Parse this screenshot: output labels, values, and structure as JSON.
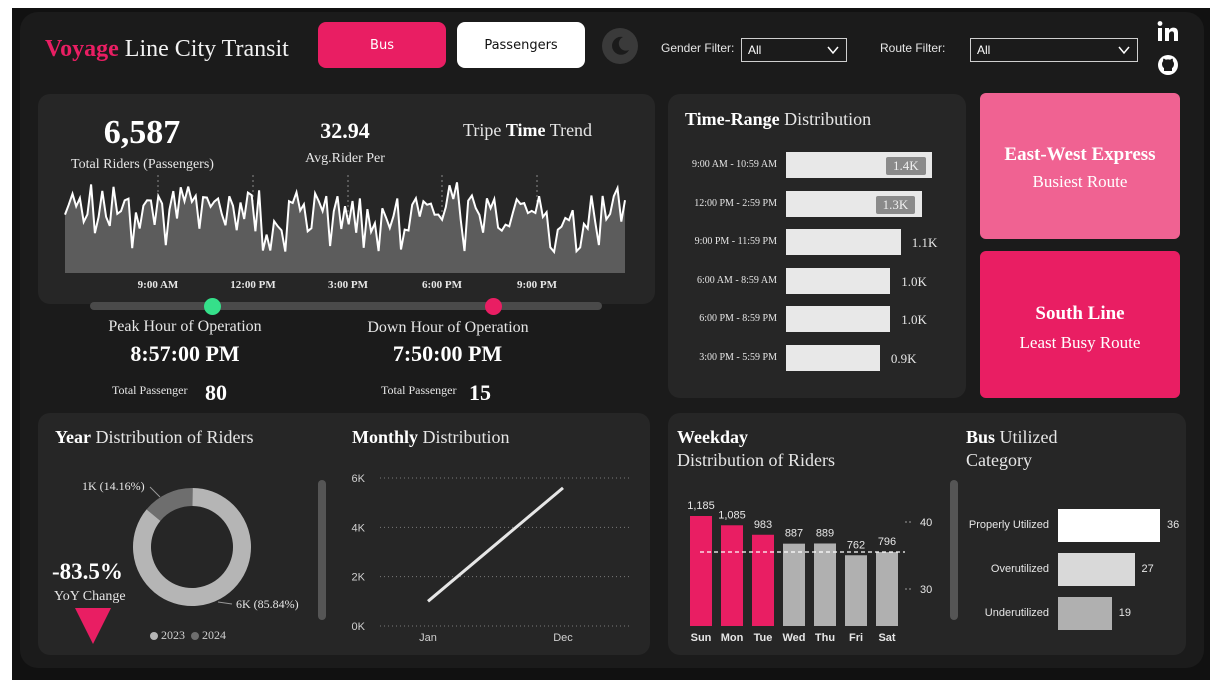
{
  "header": {
    "brand_accent": "Voyage",
    "brand_rest": " Line City Transit",
    "tab_bus": "Bus",
    "tab_passengers": "Passengers",
    "gender_filter_label": "Gender Filter:",
    "gender_filter_value": "All",
    "route_filter_label": "Route Filter:",
    "route_filter_value": "All",
    "social_icons": [
      "linkedin-icon",
      "github-icon"
    ],
    "theme_icon": "moon-icon"
  },
  "kpis": {
    "total_riders_value": "6,587",
    "total_riders_label": "Total Riders (Passengers)",
    "avg_rider_value": "32.94",
    "avg_rider_label": "Avg.Rider Per",
    "trend_title_pre": "Tripe ",
    "trend_title_bold": "Time",
    "trend_title_post": " Trend",
    "trend_x_labels": [
      "9:00 AM",
      "12:00 PM",
      "3:00 PM",
      "6:00 PM",
      "9:00 PM"
    ]
  },
  "operation": {
    "peak_label": "Peak Hour of Operation",
    "peak_time": "8:57:00 PM",
    "peak_passenger_label": "Total Passenger",
    "peak_passenger_value": "80",
    "down_label": "Down Hour of Operation",
    "down_time": "7:50:00 PM",
    "down_passenger_label": "Total Passenger",
    "down_passenger_value": "15"
  },
  "time_range": {
    "title_bold": "Time-Range",
    "title_rest": "  Distribution",
    "rows": [
      {
        "label": "9:00 AM - 10:59 AM",
        "value": 1.4,
        "text": "1.4K"
      },
      {
        "label": "12:00 PM - 2:59 PM",
        "value": 1.3,
        "text": "1.3K"
      },
      {
        "label": "9:00 PM - 11:59 PM",
        "value": 1.1,
        "text": "1.1K"
      },
      {
        "label": "6:00 AM - 8:59 AM",
        "value": 1.0,
        "text": "1.0K"
      },
      {
        "label": "6:00 PM - 8:59 PM",
        "value": 1.0,
        "text": "1.0K"
      },
      {
        "label": "3:00 PM - 5:59 PM",
        "value": 0.9,
        "text": "0.9K"
      }
    ]
  },
  "routes": {
    "busiest_name": "East-West Express",
    "busiest_label": "Busiest Route",
    "least_name": "South Line",
    "least_label": "Least Busy Route",
    "busiest_color": "#f06292",
    "least_color": "#e91e63"
  },
  "year_dist": {
    "title_bold": "Year",
    "title_rest": " Distribution of Riders",
    "slice_2023_label": "1K (14.16%)",
    "slice_2024_label": "6K (85.84%)",
    "yoy_value": "-83.5%",
    "yoy_label": "YoY Change",
    "legend_2023": "2023",
    "legend_2024": "2024",
    "color_2023": "#6e6e6e",
    "color_2024": "#b5b5b5"
  },
  "monthly": {
    "title_bold": "Monthly",
    "title_rest": " Distribution",
    "y_ticks": [
      "6K",
      "4K",
      "2K",
      "0K"
    ],
    "x_labels": [
      "Jan",
      "Dec"
    ]
  },
  "weekday": {
    "title_bold": "Weekday",
    "title_rest": "Distribution of Riders",
    "right_ticks": [
      "40",
      "30"
    ],
    "highlight_color": "#e91e63",
    "base_color": "#b0b0b0"
  },
  "bus_util": {
    "title_bold": "Bus",
    "title_rest": " Utilized",
    "title_line2": "Category",
    "rows": [
      {
        "label": "Properly Utilized",
        "value": 36
      },
      {
        "label": "Overutilized",
        "value": 27
      },
      {
        "label": "Underutilized",
        "value": 19
      }
    ]
  },
  "chart_data": [
    {
      "type": "bar",
      "title": "Time-Range Distribution",
      "categories": [
        "9:00 AM - 10:59 AM",
        "12:00 PM - 2:59 PM",
        "9:00 PM - 11:59 PM",
        "6:00 AM - 8:59 AM",
        "6:00 PM - 8:59 PM",
        "3:00 PM - 5:59 PM"
      ],
      "values": [
        1400,
        1300,
        1100,
        1000,
        1000,
        900
      ]
    },
    {
      "type": "pie",
      "title": "Year Distribution of Riders",
      "categories": [
        "2023",
        "2024"
      ],
      "values": [
        14.16,
        85.84
      ]
    },
    {
      "type": "line",
      "title": "Monthly Distribution",
      "x": [
        "Jan",
        "Dec"
      ],
      "values": [
        1000,
        5600
      ],
      "ylim": [
        0,
        6000
      ]
    },
    {
      "type": "bar",
      "title": "Weekday Distribution of Riders",
      "categories": [
        "Sun",
        "Mon",
        "Tue",
        "Wed",
        "Thu",
        "Fri",
        "Sat"
      ],
      "values": [
        1185,
        1085,
        983,
        887,
        889,
        762,
        796
      ]
    },
    {
      "type": "bar",
      "title": "Bus Utilized Category",
      "categories": [
        "Properly Utilized",
        "Overutilized",
        "Underutilized"
      ],
      "values": [
        36,
        27,
        19
      ]
    },
    {
      "type": "area",
      "title": "Tripe Time Trend",
      "x": [
        "9:00 AM",
        "12:00 PM",
        "3:00 PM",
        "6:00 PM",
        "9:00 PM"
      ],
      "values": [
        30,
        34,
        31,
        35,
        32
      ]
    }
  ]
}
